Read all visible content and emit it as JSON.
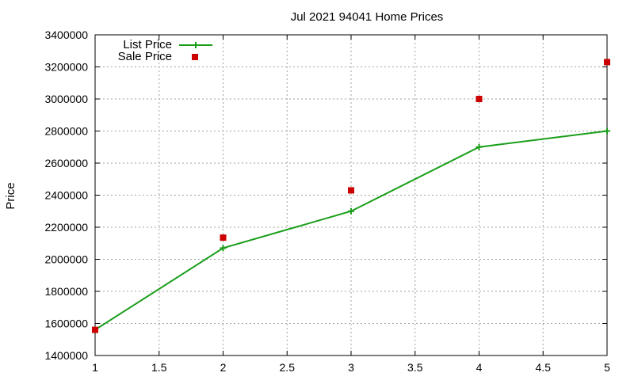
{
  "chart_data": {
    "type": "line",
    "title": "Jul 2021 94041 Home Prices",
    "xlabel": "",
    "ylabel": "Price",
    "xlim": [
      1,
      5
    ],
    "ylim": [
      1400000,
      3400000
    ],
    "x_ticks": [
      1,
      1.5,
      2,
      2.5,
      3,
      3.5,
      4,
      4.5,
      5
    ],
    "y_ticks": [
      1400000,
      1600000,
      1800000,
      2000000,
      2200000,
      2400000,
      2600000,
      2800000,
      3000000,
      3200000,
      3400000
    ],
    "grid": true,
    "legend_position": "top-left",
    "series": [
      {
        "name": "List Price",
        "style": "line+plus-markers",
        "color": "#1a9e1a",
        "x": [
          1,
          2,
          3,
          4,
          5
        ],
        "values": [
          1560000,
          2070000,
          2300000,
          2700000,
          2800000
        ]
      },
      {
        "name": "Sale Price",
        "style": "square-markers",
        "color": "#cc0000",
        "x": [
          1,
          2,
          3,
          4,
          5
        ],
        "values": [
          1560000,
          2135000,
          2430000,
          3000000,
          3230000
        ]
      }
    ]
  }
}
